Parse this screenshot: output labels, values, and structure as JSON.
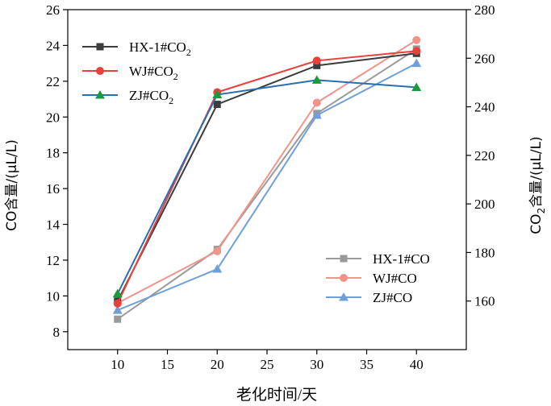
{
  "chart_data": {
    "type": "line",
    "x": [
      10,
      20,
      30,
      40
    ],
    "xlabel": "老化时间/天",
    "ylabel_left": "CO含量/(μL/L)",
    "ylabel_right_main": "CO",
    "ylabel_right_sub": "2",
    "ylabel_right_rest": "含量/(μL/L)",
    "xlim": [
      5,
      45
    ],
    "ylim_left": [
      7,
      26
    ],
    "ylim_right": [
      140,
      280
    ],
    "xticks": [
      10,
      15,
      20,
      25,
      30,
      35,
      40
    ],
    "yticks_left": [
      8,
      10,
      12,
      14,
      16,
      18,
      20,
      22,
      24,
      26
    ],
    "yticks_right": [
      160,
      180,
      200,
      220,
      240,
      260,
      280
    ],
    "grid": false,
    "legend_co2_position": "top-left",
    "legend_co_position": "bottom-right",
    "series": [
      {
        "name": "HX-1#CO",
        "name_sub": "2",
        "axis": "right",
        "group": "co2",
        "marker": "square",
        "color": "#3c3c3c",
        "values": [
          160,
          241,
          257,
          262
        ]
      },
      {
        "name": "WJ#CO",
        "name_sub": "2",
        "axis": "right",
        "group": "co2",
        "marker": "circle",
        "color": "#e8413c",
        "values": [
          159,
          246,
          259,
          263
        ]
      },
      {
        "name": "ZJ#CO",
        "name_sub": "2",
        "axis": "right",
        "group": "co2",
        "marker": "triangle",
        "marker_color": "#1a9a3c",
        "color": "#2a6db0",
        "values": [
          163,
          245,
          251,
          248
        ]
      },
      {
        "name": "HX-1#CO",
        "name_sub": "",
        "axis": "left",
        "group": "co",
        "marker": "square",
        "color": "#9a9a9a",
        "values": [
          8.7,
          12.6,
          20.2,
          23.8
        ]
      },
      {
        "name": "WJ#CO",
        "name_sub": "",
        "axis": "left",
        "group": "co",
        "marker": "circle",
        "color": "#f0948a",
        "values": [
          9.6,
          12.5,
          20.8,
          24.3
        ]
      },
      {
        "name": "ZJ#CO",
        "name_sub": "",
        "axis": "left",
        "group": "co",
        "marker": "triangle",
        "color": "#6f9fd8",
        "values": [
          9.2,
          11.5,
          20.1,
          23.0
        ]
      }
    ]
  }
}
